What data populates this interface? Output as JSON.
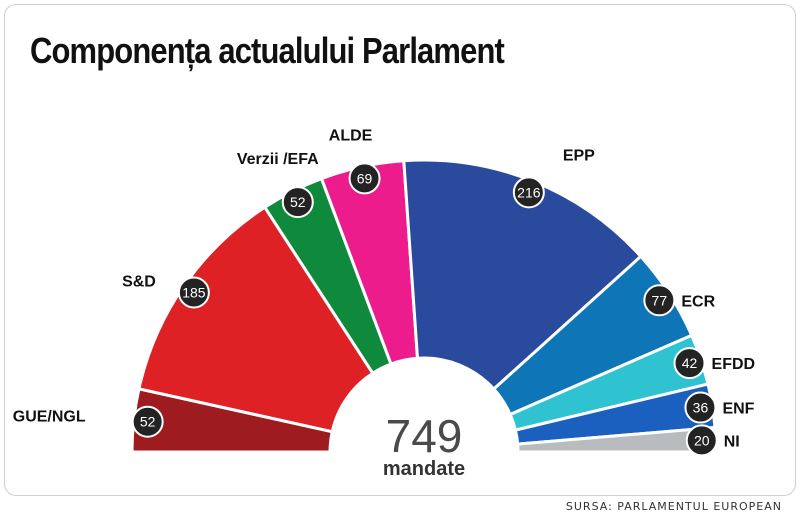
{
  "page": {
    "source": "SURSA: PARLAMENTUL EUROPEAN"
  },
  "chart_data": {
    "type": "pie",
    "variant": "semicircle-parliament",
    "title": "Componența actualului Parlament",
    "total": "749",
    "total_unit": "mandate",
    "order": "left-to-right",
    "series": [
      {
        "name": "GUE/NGL",
        "value": 52,
        "color": "#9e1b20"
      },
      {
        "name": "S&D",
        "value": 185,
        "color": "#de2125"
      },
      {
        "name": "Verzii /EFA",
        "value": 52,
        "color": "#0f8a3c"
      },
      {
        "name": "ALDE",
        "value": 69,
        "color": "#ec1c8d"
      },
      {
        "name": "EPP",
        "value": 216,
        "color": "#2a4a9e"
      },
      {
        "name": "ECR",
        "value": 77,
        "color": "#0e76b6"
      },
      {
        "name": "EFDD",
        "value": 42,
        "color": "#2fc3d2"
      },
      {
        "name": "ENF",
        "value": 36,
        "color": "#1b5fbf"
      },
      {
        "name": "NI",
        "value": 20,
        "color": "#b9bcbf"
      }
    ]
  }
}
